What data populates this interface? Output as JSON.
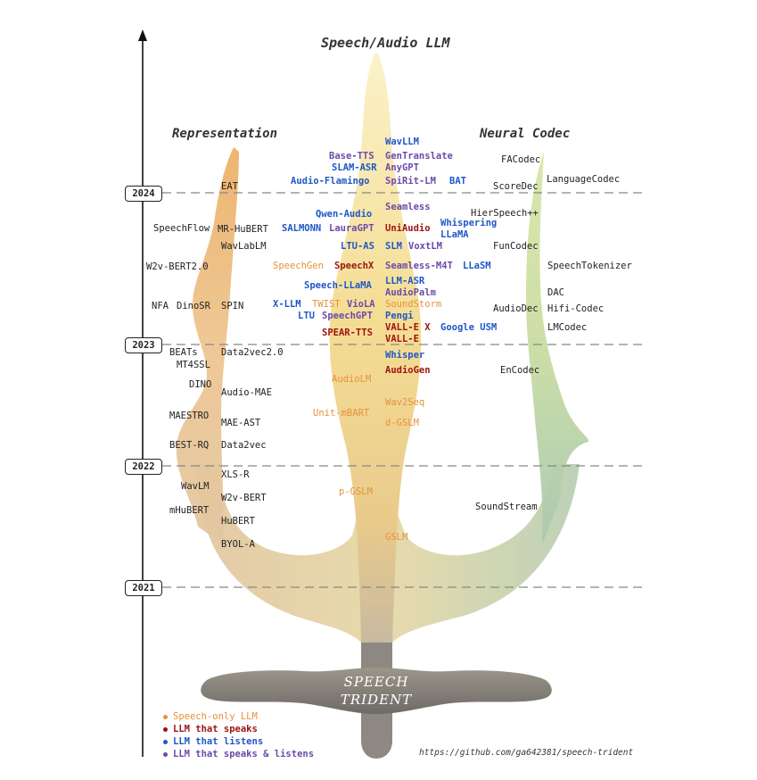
{
  "title": "Speech/Audio LLM",
  "branches": {
    "left": "Representation",
    "right": "Neural Codec"
  },
  "base_title": [
    "SPEECH",
    "TRIDENT"
  ],
  "years": [
    "2024",
    "2023",
    "2022",
    "2021"
  ],
  "legend": [
    {
      "label": "Speech-only LLM",
      "color": "#e6913a"
    },
    {
      "label": "LLM that speaks",
      "color": "#9e1212"
    },
    {
      "label": "LLM that listens",
      "color": "#1f57c8"
    },
    {
      "label": "LLM that speaks & listens",
      "color": "#6a4aa8"
    }
  ],
  "url": "https://github.com/ga642381/speech-trident",
  "models": {
    "WavLLM": "WavLLM",
    "Base-TTS": "Base-TTS",
    "GenTranslate": "GenTranslate",
    "SLAM-ASR": "SLAM-ASR",
    "AnyGPT": "AnyGPT",
    "Audio-Flamingo": "Audio-Flamingo",
    "SpiRit-LM": "SpiRit-LM",
    "BAT": "BAT",
    "Seamless": "Seamless",
    "Qwen-Audio": "Qwen-Audio",
    "SALMONN": "SALMONN",
    "LauraGPT": "LauraGPT",
    "UniAudio": "UniAudio",
    "Whispering": "Whispering",
    "LLaMA": "LLaMA",
    "LTU-AS": "LTU-AS",
    "SLM": "SLM",
    "VoxtLM": "VoxtLM",
    "SpeechGen": "SpeechGen",
    "SpeechX": "SpeechX",
    "Seamless-M4T": "Seamless-M4T",
    "LLaSM": "LLaSM",
    "Speech-LLaMA": "Speech-LLaMA",
    "LLM-ASR": "LLM-ASR",
    "AudioPalm": "AudioPalm",
    "X-LLM": "X-LLM",
    "TWIST": "TWIST",
    "VioLA": "VioLA",
    "SoundStorm": "SoundStorm",
    "LTU": "LTU",
    "SpeechGPT": "SpeechGPT",
    "Pengi": "Pengi",
    "SPEAR-TTS": "SPEAR-TTS",
    "VALL-E X": "VALL-E X",
    "Google USM": "Google USM",
    "VALL-E": "VALL-E",
    "Whisper": "Whisper",
    "AudioGen": "AudioGen",
    "AudioLM": "AudioLM",
    "Wav2Seq": "Wav2Seq",
    "Unit-mBART": "Unit-mBART",
    "d-GSLM": "d-GSLM",
    "p-GSLM": "p-GSLM",
    "GSLM": "GSLM",
    "EAT": "EAT",
    "SpeechFlow": "SpeechFlow",
    "MR-HuBERT": "MR-HuBERT",
    "WavLabLM": "WavLabLM",
    "W2v-BERT2.0": "W2v-BERT2.0",
    "NFA": "NFA",
    "DinoSR": "DinoSR",
    "SPIN": "SPIN",
    "BEATs": "BEATs",
    "Data2vec2.0": "Data2vec2.0",
    "MT4SSL": "MT4SSL",
    "DINO": "DINO",
    "Audio-MAE": "Audio-MAE",
    "MAESTRO": "MAESTRO",
    "MAE-AST": "MAE-AST",
    "BEST-RQ": "BEST-RQ",
    "Data2vec": "Data2vec",
    "XLS-R": "XLS-R",
    "WavLM": "WavLM",
    "W2v-BERT": "W2v-BERT",
    "mHuBERT": "mHuBERT",
    "HuBERT": "HuBERT",
    "BYOL-A": "BYOL-A",
    "FACodec": "FACodec",
    "LanguageCodec": "LanguageCodec",
    "ScoreDec": "ScoreDec",
    "HierSpeech++": "HierSpeech++",
    "FunCodec": "FunCodec",
    "SpeechTokenizer": "SpeechTokenizer",
    "DAC": "DAC",
    "AudioDec": "AudioDec",
    "Hifi-Codec": "Hifi-Codec",
    "LMCodec": "LMCodec",
    "EnCodec": "EnCodec",
    "SoundStream": "SoundStream"
  }
}
